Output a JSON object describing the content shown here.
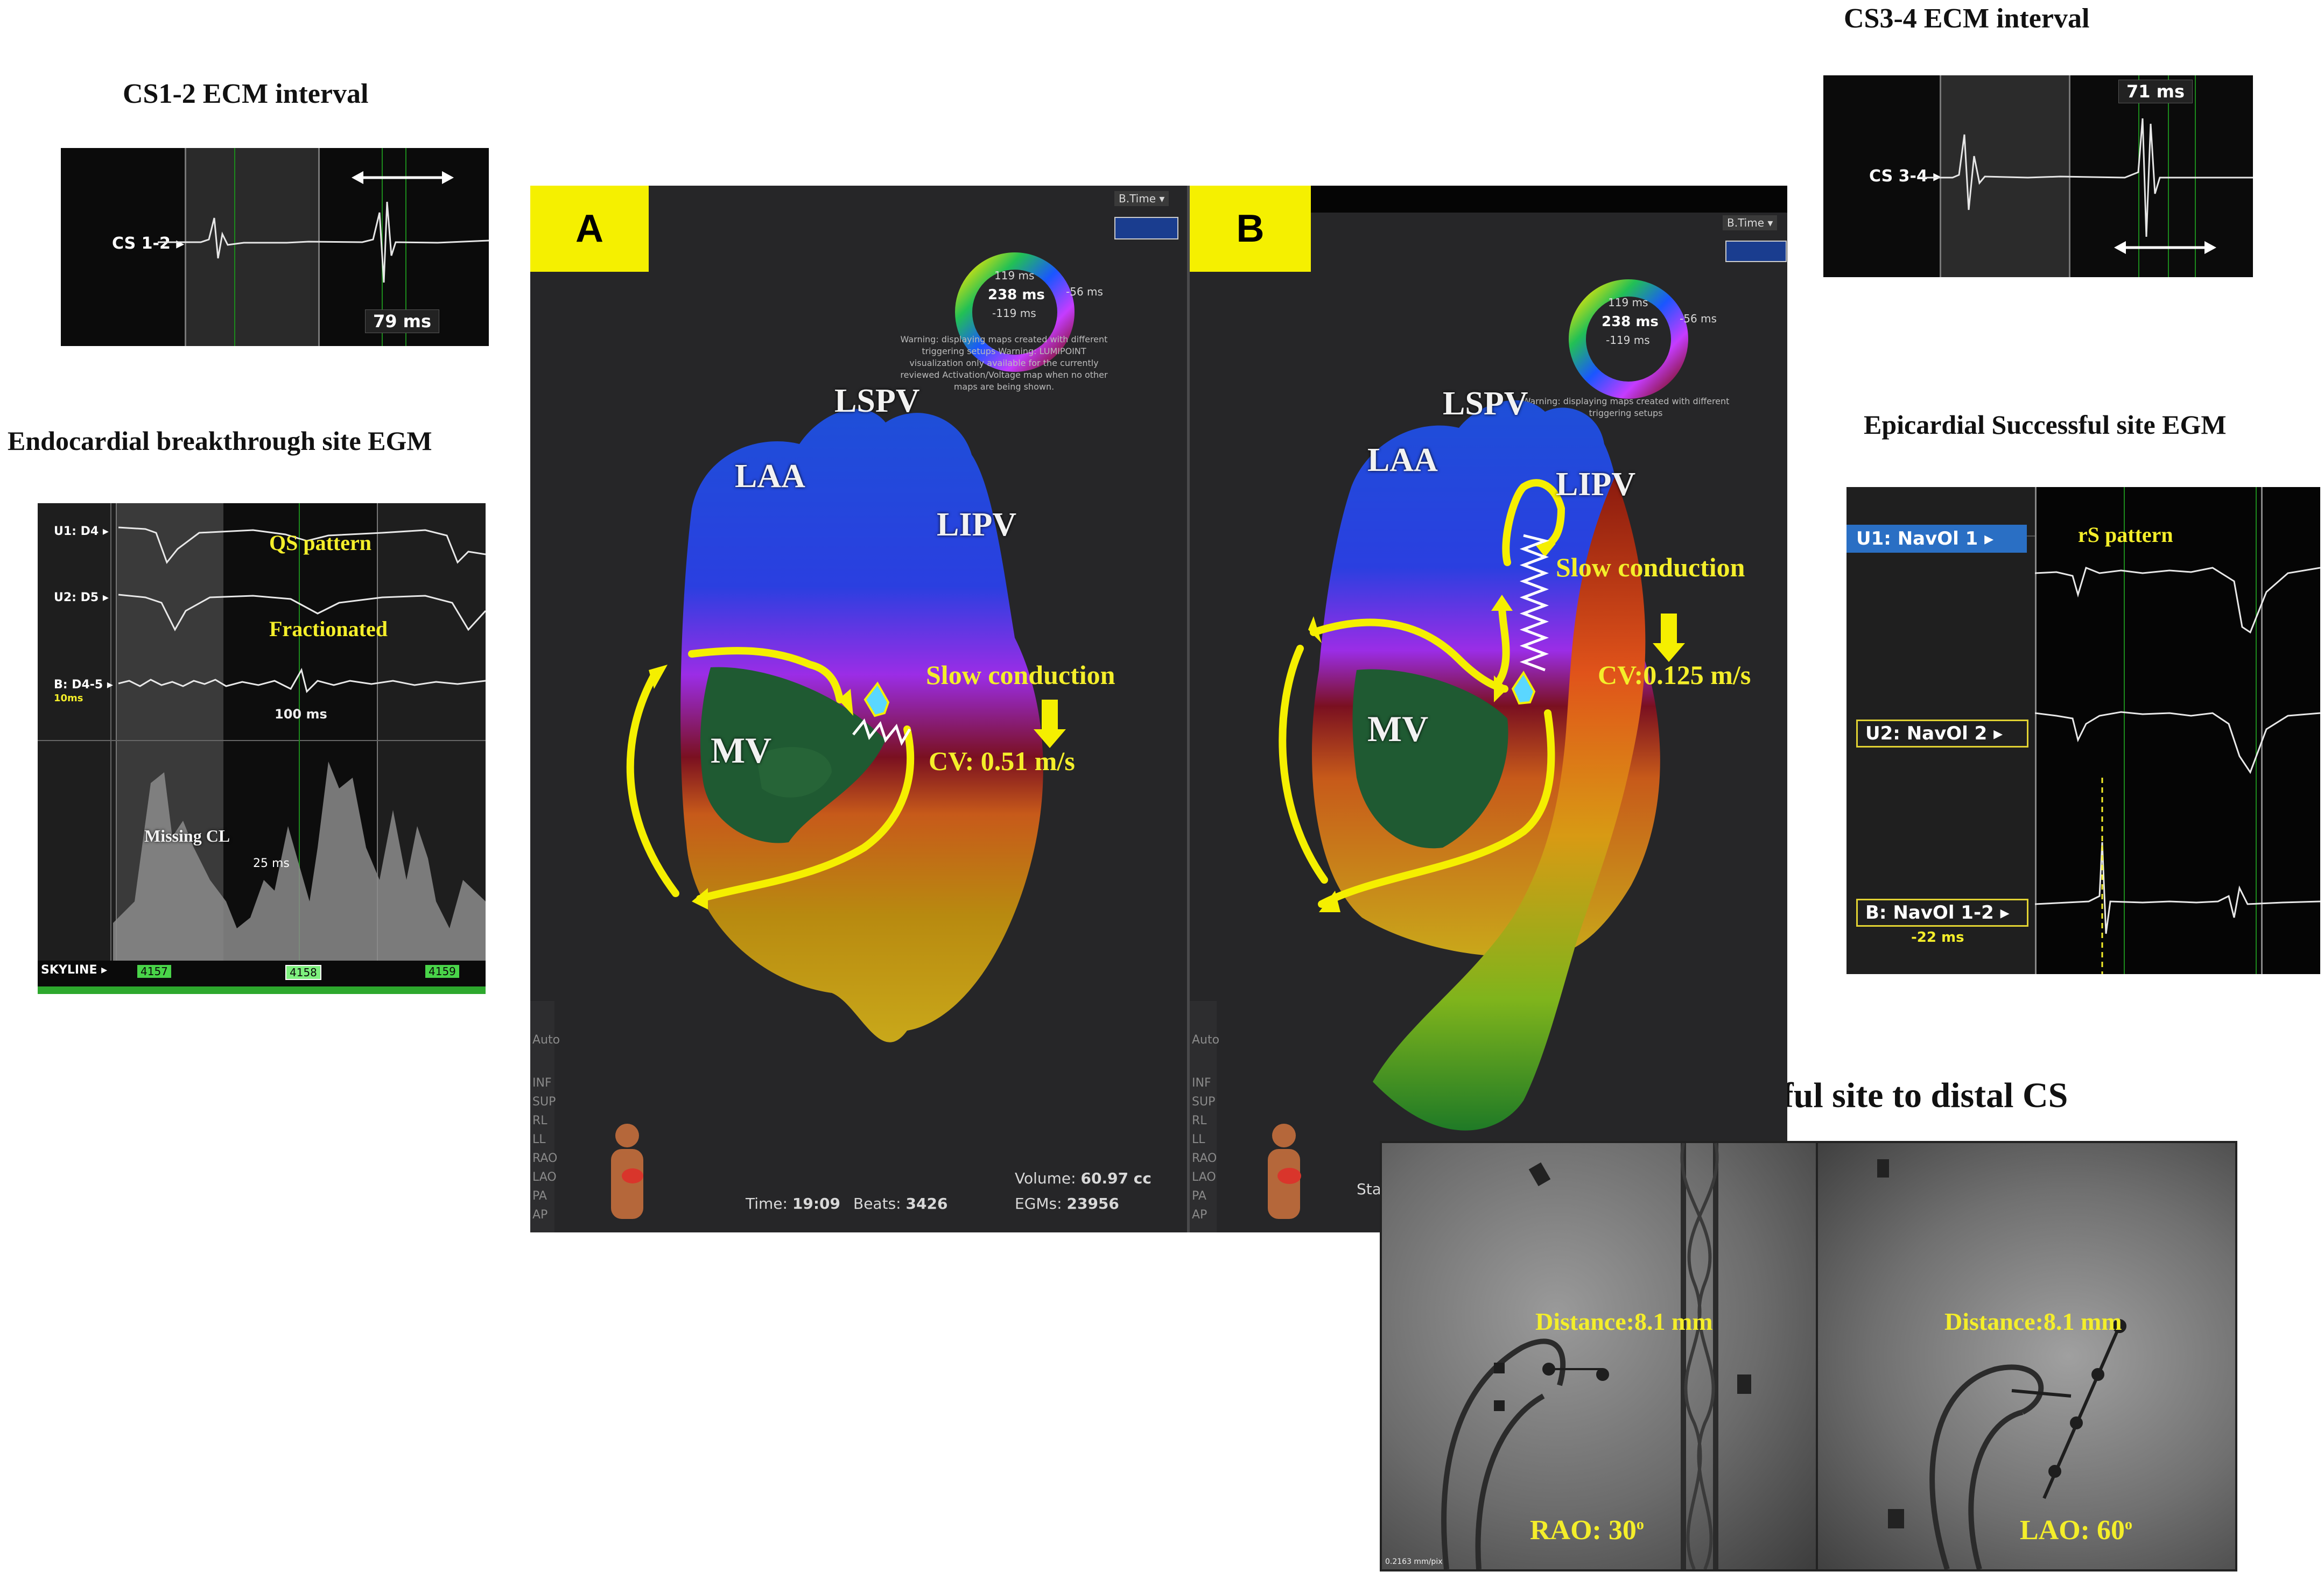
{
  "captions": {
    "cs12": "CS1-2 ECM interval",
    "endo": "Endocardial breakthrough site EGM",
    "cs34": "CS3-4 ECM interval",
    "epi": "Epicardial Successful site EGM",
    "distance": "Distance from successful site to distal CS"
  },
  "cs12_panel": {
    "channel": "CS 1-2",
    "interval": "79 ms"
  },
  "cs34_panel": {
    "channel": "CS 3-4",
    "interval": "71 ms"
  },
  "endo_panel": {
    "channels": [
      "U1: D4",
      "U2: D5",
      "B: D4-5"
    ],
    "b_sub": "10ms",
    "qs": "QS pattern",
    "fract": "Fractionated",
    "interval": "100 ms",
    "missing": "Missing CL",
    "missing_ms": "25 ms",
    "skyline": "SKYLINE",
    "ticks": [
      "4157",
      "4158",
      "4159"
    ]
  },
  "epi_panel": {
    "channels": [
      "U1: NavOl 1",
      "U2: NavOl 2",
      "B: NavOl 1-2"
    ],
    "b_sub": "-22 ms",
    "rs": "rS pattern"
  },
  "map_a": {
    "tag": "A",
    "btime": "B.Time",
    "ring": {
      "top": "119 ms",
      "mid": "238 ms",
      "bot": "-119 ms",
      "right": "-56 ms"
    },
    "warning": "Warning: displaying maps created with different triggering setups Warning: LUMIPOINT visualization only available for the currently reviewed Activation/Voltage map when no other maps are being shown.",
    "labels": {
      "lspv": "LSPV",
      "laa": "LAA",
      "lipv": "LIPV",
      "mv": "MV",
      "slow": "Slow conduction",
      "cv": "CV: 0.51 m/s"
    },
    "footer": {
      "time_l": "Time:",
      "time": "19:09",
      "beats_l": "Beats:",
      "beats": "3426",
      "vol_l": "Volume:",
      "vol": "60.97 cc",
      "egms_l": "EGMs:",
      "egms": "23956"
    }
  },
  "map_b": {
    "tag": "B",
    "btime": "B.Time",
    "ring": {
      "top": "119 ms",
      "mid": "238 ms",
      "bot": "-119 ms",
      "right": "-56 ms"
    },
    "warning": "Warning: displaying maps created with different triggering setups",
    "labels": {
      "lspv": "LSPV",
      "laa": "LAA",
      "lipv": "LIPV",
      "mv": "MV",
      "slow": "Slow conduction",
      "cv": "CV:0.125 m/s"
    },
    "footer": {
      "sta": "Sta"
    }
  },
  "tools": [
    "Auto",
    "INF",
    "SUP",
    "RL",
    "LL",
    "RAO",
    "LAO",
    "PA",
    "AP"
  ],
  "fluoro": {
    "rao": {
      "dist": "Distance:8.1 mm",
      "view": "RAO: 30",
      "deg": "o"
    },
    "lao": {
      "dist": "Distance:8.1 mm",
      "view": "LAO: 60",
      "deg": "o"
    },
    "scale": "0.2163 mm/pix"
  }
}
